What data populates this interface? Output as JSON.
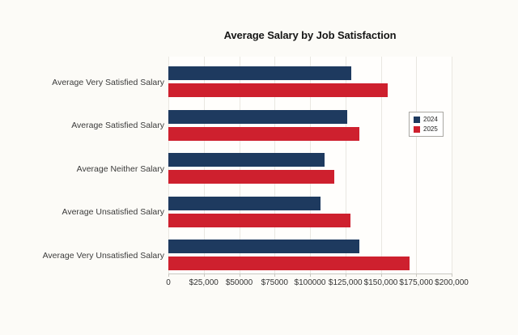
{
  "chart_data": {
    "type": "bar",
    "orientation": "horizontal",
    "title": "Average Salary by Job Satisfaction",
    "categories": [
      "Average Very Satisfied Salary",
      "Average Satisfied Salary",
      "Average Neither Salary",
      "Average Unsatisfied Salary",
      "Average Very Unsatisfied Salary"
    ],
    "series": [
      {
        "name": "2024",
        "color": "#1e3a5f",
        "values": [
          129000,
          126000,
          110000,
          107500,
          135000
        ]
      },
      {
        "name": "2025",
        "color": "#ce202e",
        "values": [
          155000,
          135000,
          117000,
          128500,
          170000
        ]
      }
    ],
    "x_axis": {
      "min": 0,
      "max": 200000,
      "tick_values": [
        0,
        25000,
        50000,
        75000,
        100000,
        125000,
        150000,
        175000,
        200000
      ],
      "tick_labels": [
        "0",
        "$25,000",
        "$50000",
        "$75000",
        "$100000",
        "$125,000",
        "$150,000",
        "$175,000",
        "$200,000"
      ]
    },
    "legend": {
      "position": "right",
      "entries": [
        "2024",
        "2025"
      ]
    },
    "grid": true
  },
  "colors": {
    "page_bg": "#fcfbf7",
    "plot_bg": "#fffefc",
    "gridline": "#e9e7e1",
    "axis_line": "#c9c7c1",
    "title_text": "#161616",
    "label_text": "#3b3b3b",
    "series_2024": "#1e3a5f",
    "series_2025": "#ce202e"
  }
}
